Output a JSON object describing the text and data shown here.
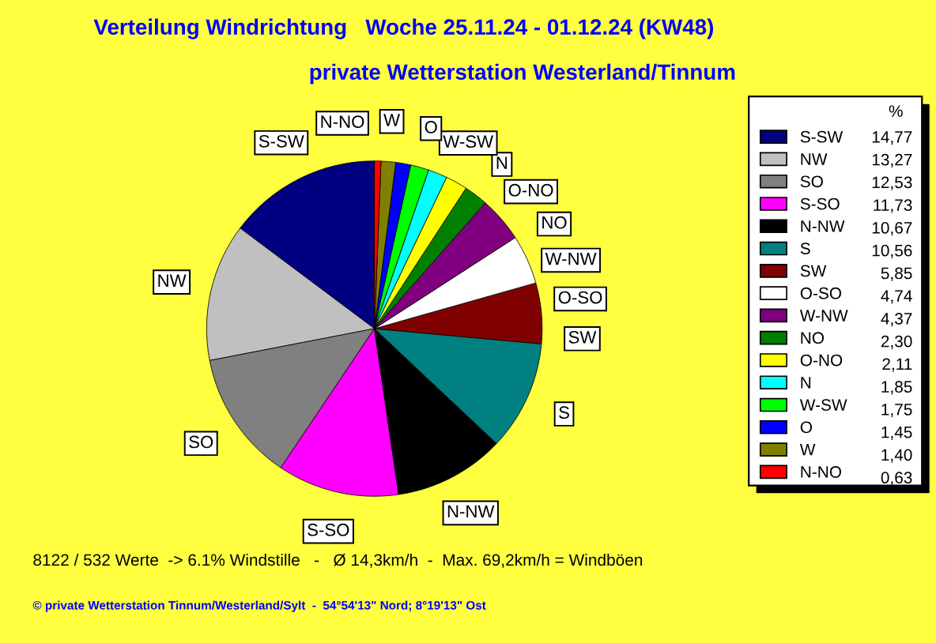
{
  "chart_data": {
    "type": "pie",
    "title": "Verteilung Windrichtung   Woche 25.11.24 - 01.12.24 (KW48)",
    "subtitle": "private Wetterstation Westerland/Tinnum",
    "categories": [
      "S-SW",
      "NW",
      "SO",
      "S-SO",
      "N-NW",
      "S",
      "SW",
      "O-SO",
      "W-NW",
      "NO",
      "O-NO",
      "N",
      "W-SW",
      "O",
      "W",
      "N-NO"
    ],
    "values": [
      14.77,
      13.27,
      12.53,
      11.73,
      10.67,
      10.56,
      5.85,
      4.74,
      4.37,
      2.3,
      2.11,
      1.85,
      1.75,
      1.45,
      1.4,
      0.63
    ],
    "value_labels": [
      "14,77",
      "13,27",
      "12,53",
      "11,73",
      "10,67",
      "10,56",
      "5,85",
      "4,74",
      "4,37",
      "2,30",
      "2,11",
      "1,85",
      "1,75",
      "1,45",
      "1,40",
      "0,63"
    ],
    "colors": [
      "#000080",
      "#c0c0c0",
      "#808080",
      "#ff00ff",
      "#000000",
      "#008080",
      "#800000",
      "#ffffff",
      "#800080",
      "#008000",
      "#ffff00",
      "#00ffff",
      "#00ff00",
      "#0000ff",
      "#808000",
      "#ff0000"
    ],
    "legend": "right",
    "legend_title": "%",
    "annotations": [
      "8122 / 532 Werte  -> 6.1% Windstille   -   Ø 14,3km/h  -  Max. 69,2km/h = Windböen",
      "© private Wetterstation Tinnum/Westerland/Sylt  -  54°54'13\" Nord; 8°19'13\" Ost"
    ]
  }
}
